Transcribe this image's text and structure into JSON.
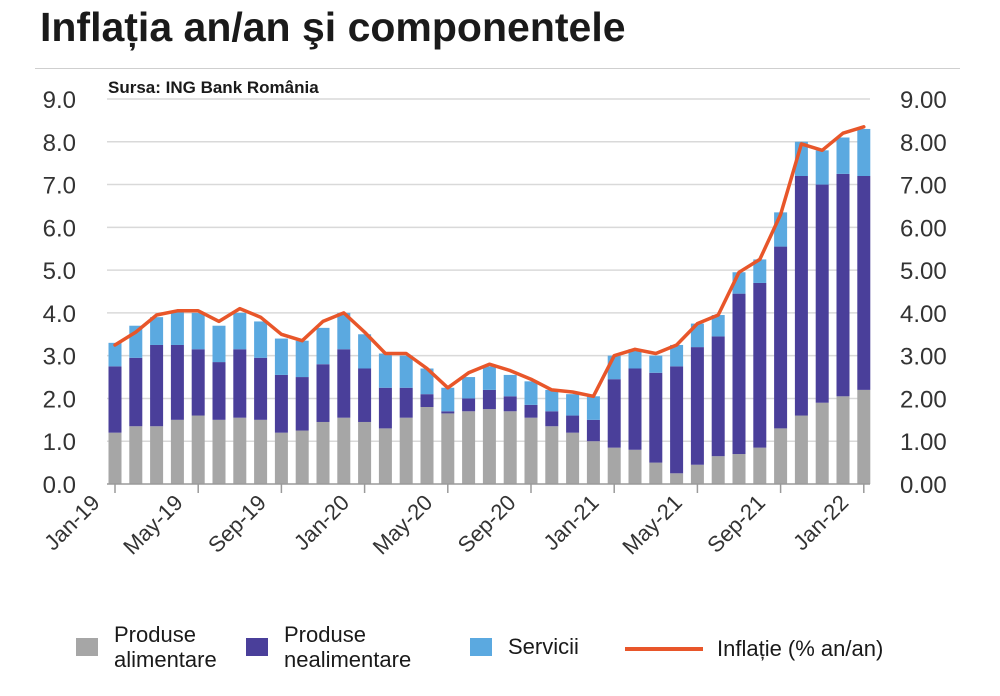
{
  "title": "Inflația an/an şi componentele",
  "source": "Sursa: ING Bank România",
  "chart_data": {
    "type": "bar",
    "stacked": true,
    "categories": [
      "Jan-19",
      "Feb-19",
      "Mar-19",
      "Apr-19",
      "May-19",
      "Jun-19",
      "Jul-19",
      "Aug-19",
      "Sep-19",
      "Oct-19",
      "Nov-19",
      "Dec-19",
      "Jan-20",
      "Feb-20",
      "Mar-20",
      "Apr-20",
      "May-20",
      "Jun-20",
      "Jul-20",
      "Aug-20",
      "Sep-20",
      "Oct-20",
      "Nov-20",
      "Dec-20",
      "Jan-21",
      "Feb-21",
      "Mar-21",
      "Apr-21",
      "May-21",
      "Jun-21",
      "Jul-21",
      "Aug-21",
      "Sep-21",
      "Oct-21",
      "Nov-21",
      "Dec-21",
      "Jan-22"
    ],
    "x_tick_labels": [
      "Jan-19",
      "May-19",
      "Sep-19",
      "Jan-20",
      "May-20",
      "Sep-20",
      "Jan-21",
      "May-21",
      "Sep-21",
      "Jan-22"
    ],
    "y_left_ticks": [
      "0.0",
      "1.0",
      "2.0",
      "3.0",
      "4.0",
      "5.0",
      "6.0",
      "7.0",
      "8.0",
      "9.0"
    ],
    "y_right_ticks": [
      "0.00",
      "1.00",
      "2.00",
      "3.00",
      "4.00",
      "5.00",
      "6.00",
      "7.00",
      "8.00",
      "9.00"
    ],
    "ylim": [
      0,
      9
    ],
    "series": [
      {
        "name": "Produse alimentare",
        "kind": "bar",
        "color": "#a6a6a6",
        "values": [
          1.2,
          1.35,
          1.35,
          1.5,
          1.6,
          1.5,
          1.55,
          1.5,
          1.2,
          1.25,
          1.45,
          1.55,
          1.45,
          1.3,
          1.55,
          1.8,
          1.65,
          1.7,
          1.75,
          1.7,
          1.55,
          1.35,
          1.2,
          1.0,
          0.85,
          0.8,
          0.5,
          0.25,
          0.45,
          0.65,
          0.7,
          0.85,
          1.3,
          1.6,
          1.9,
          2.05,
          2.2
        ]
      },
      {
        "name": "Produse nealimentare",
        "kind": "bar",
        "color": "#4a3f9a",
        "values": [
          1.55,
          1.6,
          1.9,
          1.75,
          1.55,
          1.35,
          1.6,
          1.45,
          1.35,
          1.25,
          1.35,
          1.6,
          1.25,
          0.95,
          0.7,
          0.3,
          0.05,
          0.3,
          0.45,
          0.35,
          0.3,
          0.35,
          0.4,
          0.5,
          1.6,
          1.9,
          2.1,
          2.5,
          2.75,
          2.8,
          3.75,
          3.85,
          4.25,
          5.6,
          5.1,
          5.2,
          5.0
        ]
      },
      {
        "name": "Servicii",
        "kind": "bar",
        "color": "#5ba9e0",
        "values": [
          0.55,
          0.75,
          0.65,
          0.8,
          0.85,
          0.85,
          0.85,
          0.85,
          0.85,
          0.85,
          0.85,
          0.85,
          0.8,
          0.8,
          0.75,
          0.6,
          0.55,
          0.5,
          0.55,
          0.5,
          0.55,
          0.5,
          0.5,
          0.55,
          0.55,
          0.45,
          0.4,
          0.5,
          0.55,
          0.5,
          0.5,
          0.55,
          0.8,
          0.8,
          0.8,
          0.85,
          1.1
        ]
      },
      {
        "name": "Inflație (% an/an)",
        "kind": "line",
        "color": "#e8562a",
        "values": [
          3.25,
          3.55,
          3.95,
          4.05,
          4.05,
          3.8,
          4.1,
          3.9,
          3.5,
          3.35,
          3.8,
          4.0,
          3.55,
          3.05,
          3.05,
          2.7,
          2.25,
          2.6,
          2.8,
          2.65,
          2.45,
          2.2,
          2.15,
          2.05,
          3.0,
          3.15,
          3.05,
          3.25,
          3.75,
          3.95,
          4.95,
          5.25,
          6.3,
          7.95,
          7.8,
          8.2,
          8.35
        ]
      }
    ],
    "grid": true,
    "legend_position": "bottom"
  },
  "legend": [
    {
      "label": "Produse alimentare",
      "color": "#a6a6a6"
    },
    {
      "label": "Produse nealimentare",
      "color": "#4a3f9a"
    },
    {
      "label": "Servicii",
      "color": "#5ba9e0"
    },
    {
      "label": "Inflație (% an/an)",
      "color": "#e8562a"
    }
  ]
}
